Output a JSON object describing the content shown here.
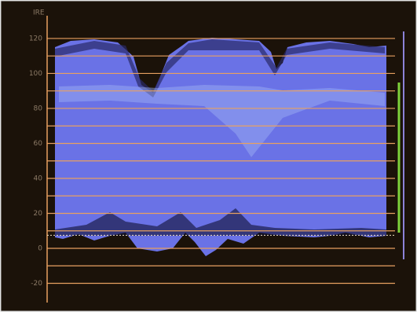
{
  "chart_data": {
    "type": "waveform",
    "ylabel": "IRE",
    "ylim": [
      -31,
      133
    ],
    "yticks": [
      -20,
      0,
      20,
      40,
      60,
      80,
      100,
      120
    ],
    "minor_yticks": [
      -10,
      10,
      30,
      50,
      70,
      90,
      110
    ],
    "setup_level": 7.5,
    "grid_color": "#e8a060",
    "trace_color": "#6a72e6"
  }
}
